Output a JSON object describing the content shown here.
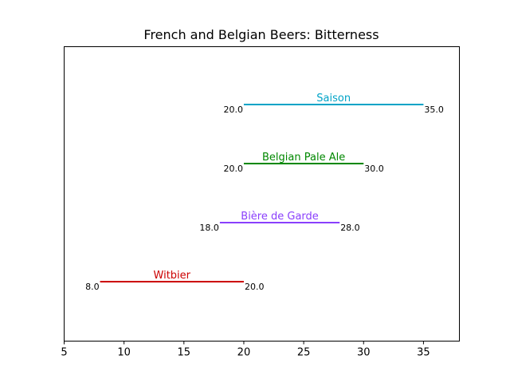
{
  "chart_data": {
    "type": "range",
    "title": "French and Belgian Beers: Bitterness",
    "xlabel": "",
    "ylabel": "",
    "xlim": [
      5,
      38
    ],
    "x_ticks": [
      5,
      10,
      15,
      20,
      25,
      30,
      35
    ],
    "y_ticks_visible": false,
    "grid": false,
    "series": [
      {
        "name": "Witbier",
        "low": 8.0,
        "high": 20.0,
        "low_label": "8.0",
        "high_label": "20.0",
        "color": "#cc0000"
      },
      {
        "name": "Bière de Garde",
        "low": 18.0,
        "high": 28.0,
        "low_label": "18.0",
        "high_label": "28.0",
        "color": "#8a3ffc"
      },
      {
        "name": "Belgian Pale Ale",
        "low": 20.0,
        "high": 30.0,
        "low_label": "20.0",
        "high_label": "30.0",
        "color": "#008800"
      },
      {
        "name": "Saison",
        "low": 20.0,
        "high": 35.0,
        "low_label": "20.0",
        "high_label": "35.0",
        "color": "#00a3c7"
      }
    ]
  }
}
